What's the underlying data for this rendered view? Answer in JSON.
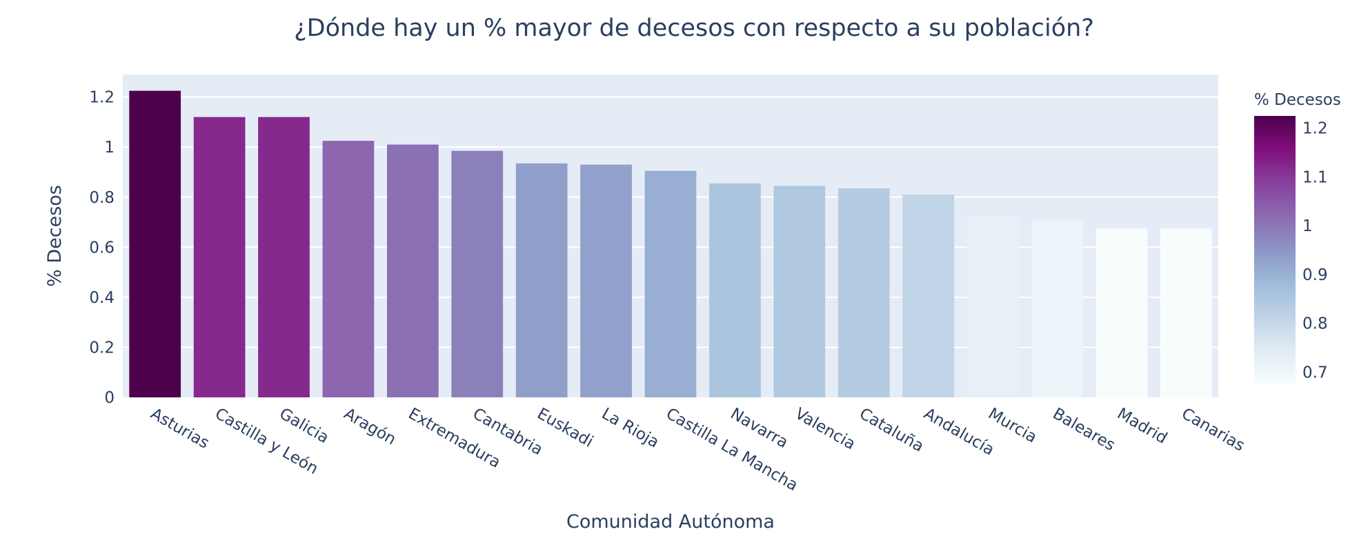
{
  "chart_data": {
    "type": "bar",
    "title": "¿Dónde hay un % mayor de decesos con respecto a su población?",
    "xlabel": "Comunidad Autónoma",
    "ylabel": "% Decesos",
    "categories": [
      "Asturias",
      "Castilla y León",
      "Galicia",
      "Aragón",
      "Extremadura",
      "Cantabria",
      "Euskadi",
      "La Rioja",
      "Castilla La Mancha",
      "Navarra",
      "Valencia",
      "Cataluña",
      "Andalucía",
      "Murcia",
      "Baleares",
      "Madrid",
      "Canarias"
    ],
    "values": [
      1.225,
      1.12,
      1.12,
      1.025,
      1.01,
      0.985,
      0.935,
      0.93,
      0.905,
      0.855,
      0.845,
      0.835,
      0.81,
      0.725,
      0.71,
      0.675,
      0.675
    ],
    "ylim": [
      0,
      1.29
    ],
    "yticks": [
      0,
      0.2,
      0.4,
      0.6,
      0.8,
      1,
      1.2
    ],
    "ytick_labels": [
      "0",
      "0.2",
      "0.4",
      "0.6",
      "0.8",
      "1",
      "1.2"
    ],
    "grid": true,
    "legend": "colorbar-right",
    "colorbar": {
      "title": "% Decesos",
      "range": [
        0.675,
        1.225
      ],
      "ticks": [
        0.7,
        0.8,
        0.9,
        1,
        1.1,
        1.2
      ],
      "tick_labels": [
        "0.7",
        "0.8",
        "0.9",
        "1",
        "1.1",
        "1.2"
      ],
      "colorscale": [
        [
          "#f7fcfd"
        ],
        [
          "#e0ecf4"
        ],
        [
          "#bfd3e6"
        ],
        [
          "#9ebcda"
        ],
        [
          "#8c96c6"
        ],
        [
          "#8c6bb1"
        ],
        [
          "#88419d"
        ],
        [
          "#810f7c"
        ],
        [
          "#4d004b"
        ]
      ]
    },
    "colors": {
      "plot_bg": "#e5ecf6",
      "grid": "#ffffff",
      "text": "#2a3f5f"
    }
  }
}
